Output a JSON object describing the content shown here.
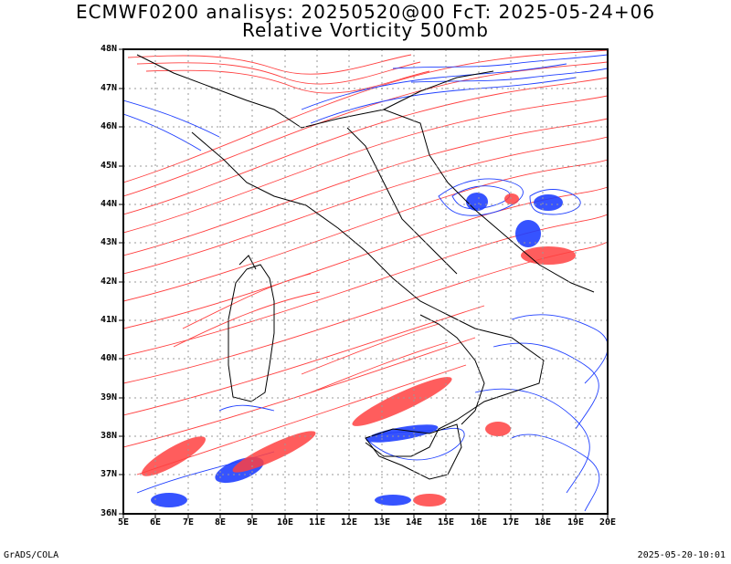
{
  "header": {
    "title_line1": "ECMWF0200 analisys: 20250520@00 FcT: 2025-05-24+06",
    "title_line2": "Relative Vorticity 500mb"
  },
  "map": {
    "lat_labels": [
      "48N",
      "47N",
      "46N",
      "45N",
      "44N",
      "43N",
      "42N",
      "41N",
      "40N",
      "39N",
      "38N",
      "37N",
      "36N"
    ],
    "lon_labels": [
      "5E",
      "6E",
      "7E",
      "8E",
      "9E",
      "10E",
      "11E",
      "12E",
      "13E",
      "14E",
      "15E",
      "16E",
      "17E",
      "18E",
      "19E",
      "20E"
    ],
    "lat_range": [
      36,
      48
    ],
    "lon_range": [
      5,
      20
    ],
    "grid": "dotted",
    "colors": {
      "positive": "#ff4040",
      "negative": "#2040ff",
      "coast": "#000000",
      "grid": "#999999"
    }
  },
  "footer": {
    "left": "GrADS/COLA",
    "right": "2025-05-20-10:01"
  }
}
